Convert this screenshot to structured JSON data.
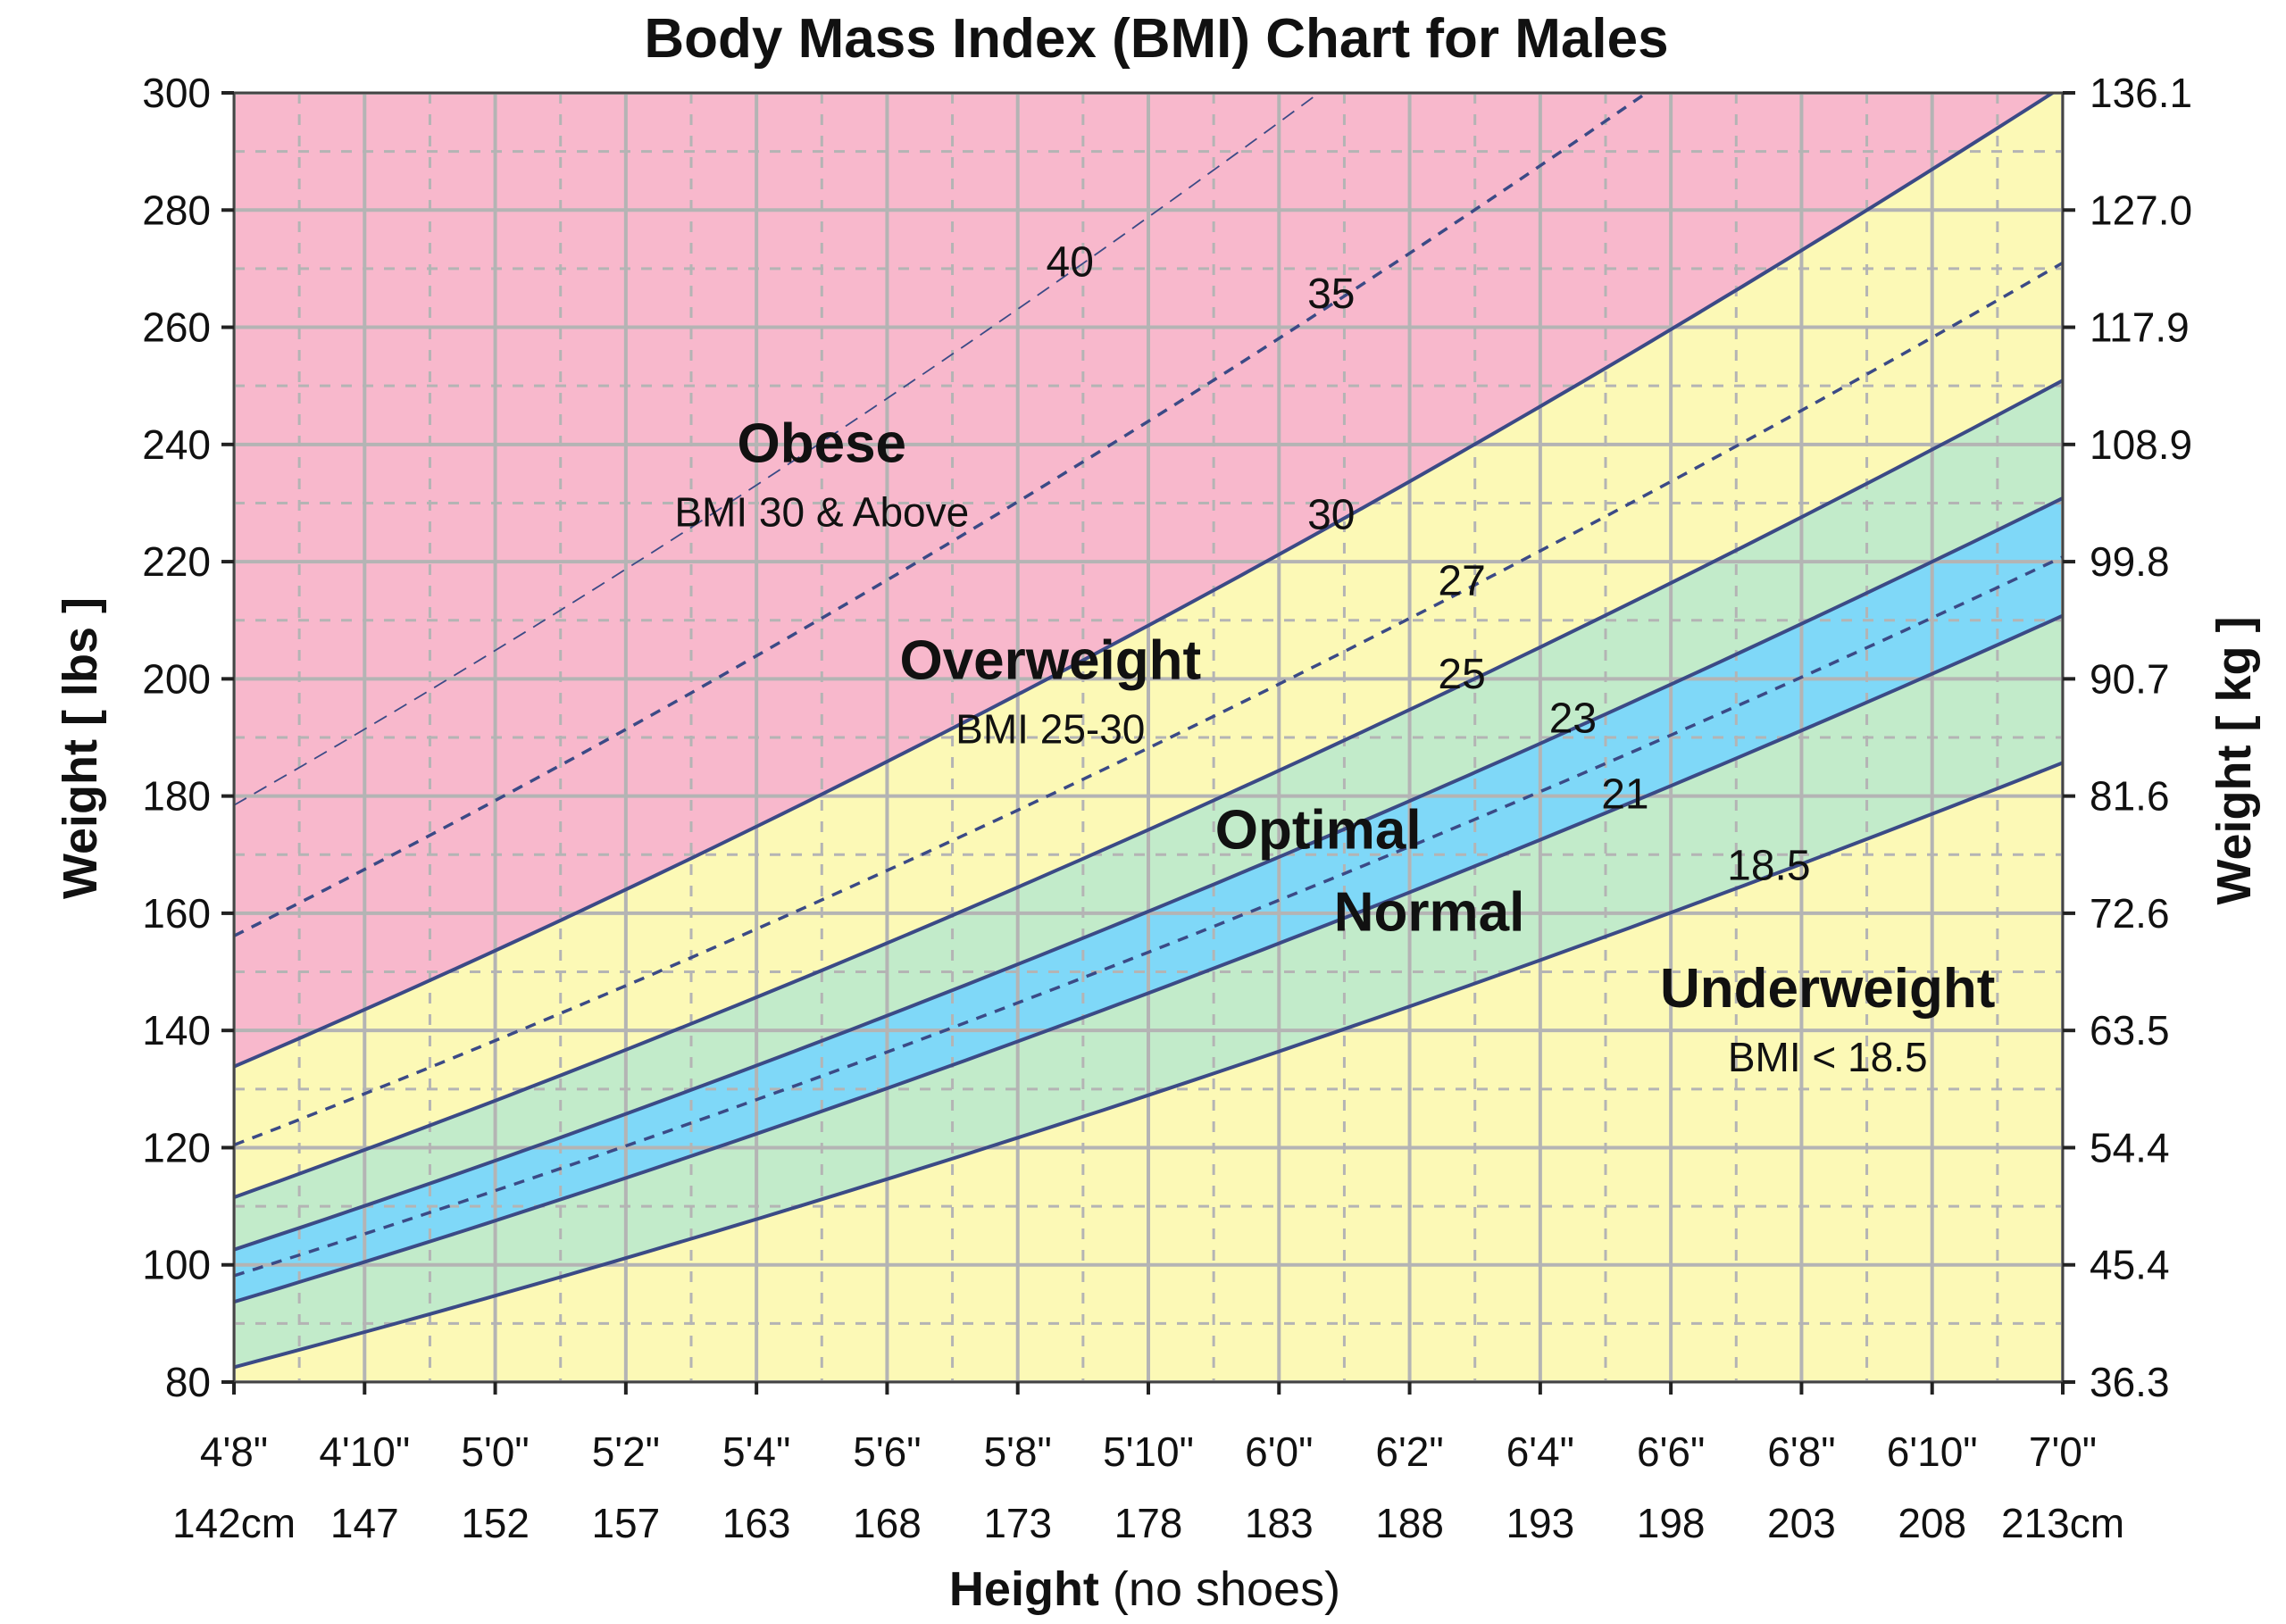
{
  "chart_data": {
    "type": "area",
    "title": "Body Mass Index (BMI) Chart for Males",
    "xlabel_bold": "Height",
    "xlabel_light": " (no shoes)",
    "ylabel_left": "Weight [ lbs ]",
    "ylabel_right": "Weight [ kg ]",
    "x_range_inches": [
      56,
      84
    ],
    "ylim": [
      80,
      300
    ],
    "x_ticks": [
      {
        "ft": "4'8\"",
        "cm": "142cm"
      },
      {
        "ft": "4'10\"",
        "cm": "147"
      },
      {
        "ft": "5'0\"",
        "cm": "152"
      },
      {
        "ft": "5'2\"",
        "cm": "157"
      },
      {
        "ft": "5'4\"",
        "cm": "163"
      },
      {
        "ft": "5'6\"",
        "cm": "168"
      },
      {
        "ft": "5'8\"",
        "cm": "173"
      },
      {
        "ft": "5'10\"",
        "cm": "178"
      },
      {
        "ft": "6'0\"",
        "cm": "183"
      },
      {
        "ft": "6'2\"",
        "cm": "188"
      },
      {
        "ft": "6'4\"",
        "cm": "193"
      },
      {
        "ft": "6'6\"",
        "cm": "198"
      },
      {
        "ft": "6'8\"",
        "cm": "203"
      },
      {
        "ft": "6'10\"",
        "cm": "208"
      },
      {
        "ft": "7'0\"",
        "cm": "213cm"
      }
    ],
    "y_ticks_left": [
      "80",
      "100",
      "120",
      "140",
      "160",
      "180",
      "200",
      "220",
      "240",
      "260",
      "280",
      "300"
    ],
    "y_ticks_right": [
      "36.3",
      "45.4",
      "54.4",
      "63.5",
      "72.6",
      "81.6",
      "90.7",
      "99.8",
      "108.9",
      "117.9",
      "127.0",
      "136.1"
    ],
    "bmi_lines": [
      {
        "bmi": 18.5,
        "label": "18.5",
        "style": "solid",
        "label_height_in": 79.5
      },
      {
        "bmi": 21,
        "label": "21",
        "style": "solid",
        "label_height_in": 77.3
      },
      {
        "bmi": 22,
        "label": "",
        "style": "dashed"
      },
      {
        "bmi": 23,
        "label": "23",
        "style": "solid",
        "label_height_in": 76.5
      },
      {
        "bmi": 25,
        "label": "25",
        "style": "solid",
        "label_height_in": 74.8
      },
      {
        "bmi": 27,
        "label": "27",
        "style": "dashed",
        "label_height_in": 74.8
      },
      {
        "bmi": 30,
        "label": "30",
        "style": "solid",
        "label_height_in": 72.8
      },
      {
        "bmi": 35,
        "label": "35",
        "style": "dashed",
        "label_height_in": 72.8
      },
      {
        "bmi": 40,
        "label": "40",
        "style": "dashed-thin",
        "label_height_in": 68.8
      }
    ],
    "zones": [
      {
        "name": "Obese",
        "sub": "BMI 30 & Above",
        "color": "#f8b8cc",
        "label_x_in": 65.0,
        "label_y": 237
      },
      {
        "name": "Overweight",
        "sub": "BMI 25-30",
        "color": "#fcf9b6",
        "label_x_in": 68.5,
        "label_y": 200
      },
      {
        "name": "Optimal",
        "sub": "",
        "color": "#7fd8f8",
        "label_x_in": 72.6,
        "label_y": 171
      },
      {
        "name": "Normal",
        "sub": "",
        "color": "#c2ebca",
        "label_x_in": 74.3,
        "label_y": 157
      },
      {
        "name": "Underweight",
        "sub": "BMI < 18.5",
        "color": "#fcf9b6",
        "label_x_in": 80.4,
        "label_y": 144
      }
    ],
    "colors": {
      "obese": "#f8b8cc",
      "overweight": "#fcf9b6",
      "normal": "#c2ebca",
      "optimal": "#7fd8f8",
      "underweight": "#fcf9b6",
      "line": "#3b4a86",
      "grid": "#b4b4b4"
    },
    "grid": true
  }
}
